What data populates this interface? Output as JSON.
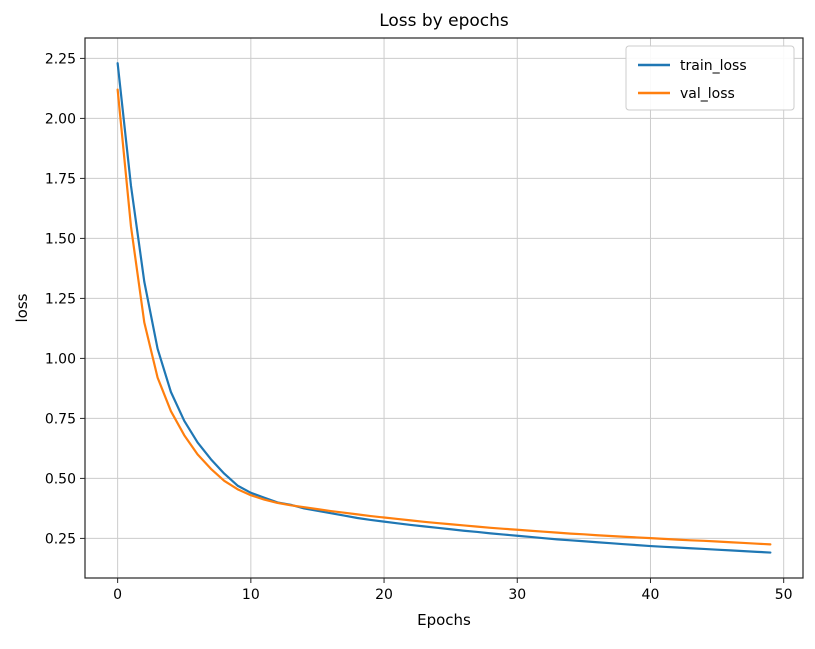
{
  "figure": {
    "background": "#ffffff"
  },
  "chart_data": {
    "type": "line",
    "title": "Loss by epochs",
    "xlabel": "Epochs",
    "ylabel": "loss",
    "xlim": [
      -2.45,
      51.45
    ],
    "ylim": [
      0.085,
      2.335
    ],
    "xticks": [
      0,
      10,
      20,
      30,
      40,
      50
    ],
    "yticks": [
      0.25,
      0.5,
      0.75,
      1.0,
      1.25,
      1.5,
      1.75,
      2.0,
      2.25
    ],
    "grid": true,
    "legend_position": "upper right",
    "grid_color": "#cccccc",
    "spine_color": "#262626",
    "series": [
      {
        "name": "train_loss",
        "color": "#1f77b4",
        "values": [
          2.23,
          1.72,
          1.32,
          1.04,
          0.86,
          0.74,
          0.65,
          0.58,
          0.52,
          0.47,
          0.44,
          0.42,
          0.4,
          0.39,
          0.375,
          0.365,
          0.355,
          0.345,
          0.335,
          0.327,
          0.32,
          0.313,
          0.306,
          0.3,
          0.294,
          0.288,
          0.282,
          0.277,
          0.271,
          0.266,
          0.261,
          0.256,
          0.251,
          0.246,
          0.242,
          0.238,
          0.234,
          0.23,
          0.226,
          0.222,
          0.218,
          0.215,
          0.212,
          0.209,
          0.206,
          0.203,
          0.2,
          0.197,
          0.194,
          0.191
        ]
      },
      {
        "name": "val_loss",
        "color": "#ff7f0e",
        "values": [
          2.12,
          1.55,
          1.15,
          0.92,
          0.78,
          0.68,
          0.6,
          0.54,
          0.49,
          0.455,
          0.43,
          0.412,
          0.398,
          0.388,
          0.38,
          0.372,
          0.364,
          0.357,
          0.35,
          0.343,
          0.337,
          0.331,
          0.325,
          0.319,
          0.314,
          0.309,
          0.304,
          0.299,
          0.294,
          0.29,
          0.286,
          0.282,
          0.278,
          0.274,
          0.27,
          0.267,
          0.263,
          0.26,
          0.257,
          0.254,
          0.251,
          0.248,
          0.245,
          0.242,
          0.24,
          0.237,
          0.234,
          0.231,
          0.228,
          0.225
        ]
      }
    ]
  }
}
